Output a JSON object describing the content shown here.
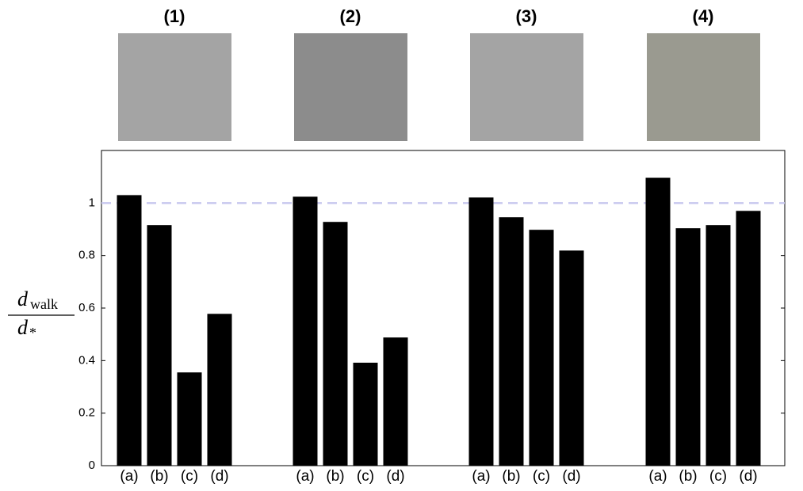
{
  "chart_data": {
    "type": "grouped-bar",
    "ylabel": {
      "numerator": "d",
      "numerator_sub": "walk",
      "denominator": "d",
      "denominator_sub": "*"
    },
    "categories": [
      "(a)",
      "(b)",
      "(c)",
      "(d)"
    ],
    "groups": [
      {
        "label": "(1)",
        "values": [
          1.03,
          0.916,
          0.355,
          0.578
        ]
      },
      {
        "label": "(2)",
        "values": [
          1.024,
          0.928,
          0.392,
          0.488
        ]
      },
      {
        "label": "(3)",
        "values": [
          1.021,
          0.946,
          0.898,
          0.819
        ]
      },
      {
        "label": "(4)",
        "values": [
          1.096,
          0.904,
          0.916,
          0.97
        ]
      }
    ],
    "color": "#000000",
    "reference_line": 1,
    "reference_color": "#c8c8ee",
    "ylim": [
      0,
      1.2
    ],
    "yticks": [
      0,
      0.2,
      0.4,
      0.6,
      0.8,
      1
    ]
  }
}
